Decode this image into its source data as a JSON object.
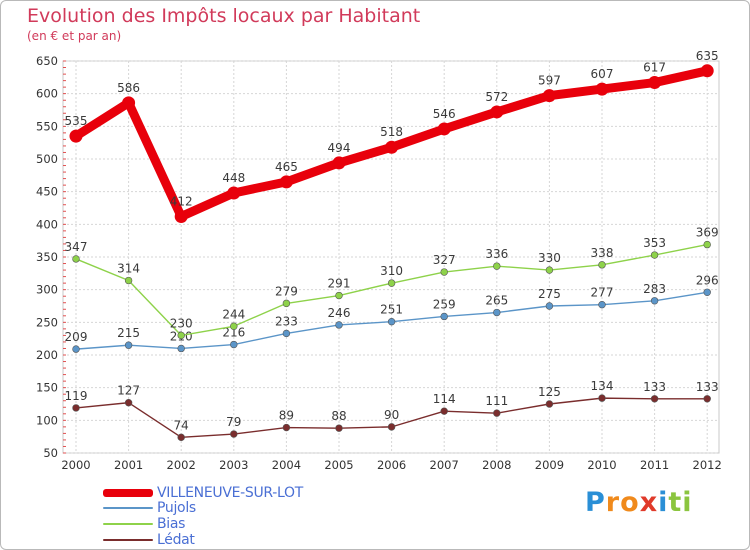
{
  "title": "Evolution des Impôts locaux par Habitant",
  "subtitle": "(en € et par an)",
  "logo": {
    "letters": [
      "P",
      "r",
      "o",
      "x",
      "i",
      "t",
      "i"
    ],
    "colors": [
      "#2a8fd6",
      "#f08a1c",
      "#f08a1c",
      "#e03a2a",
      "#2a8fd6",
      "#8bc53f",
      "#8bc53f"
    ]
  },
  "chart_data": {
    "type": "line",
    "title": "Evolution des Impôts locaux par Habitant",
    "subtitle": "(en € et par an)",
    "categories": [
      "2000",
      "2001",
      "2002",
      "2003",
      "2004",
      "2005",
      "2006",
      "2007",
      "2008",
      "2009",
      "2010",
      "2011",
      "2012"
    ],
    "ylim": [
      50,
      650
    ],
    "yticks": [
      50,
      100,
      150,
      200,
      250,
      300,
      350,
      400,
      450,
      500,
      550,
      600,
      650
    ],
    "grid": true,
    "legend_position": "bottom-left",
    "series": [
      {
        "name": "VILLENEUVE-SUR-LOT",
        "color": "#e8000b",
        "values": [
          535,
          586,
          412,
          448,
          465,
          494,
          518,
          546,
          572,
          597,
          607,
          617,
          635
        ]
      },
      {
        "name": "Pujols",
        "color": "#5b95c8",
        "values": [
          209,
          215,
          210,
          216,
          233,
          246,
          251,
          259,
          265,
          275,
          277,
          283,
          296
        ]
      },
      {
        "name": "Bias",
        "color": "#8ed24a",
        "values": [
          347,
          314,
          230,
          244,
          279,
          291,
          310,
          327,
          336,
          330,
          338,
          353,
          369
        ]
      },
      {
        "name": "Lédat",
        "color": "#7a2d2d",
        "values": [
          119,
          127,
          74,
          79,
          89,
          88,
          90,
          114,
          111,
          125,
          134,
          133,
          133
        ]
      }
    ]
  }
}
